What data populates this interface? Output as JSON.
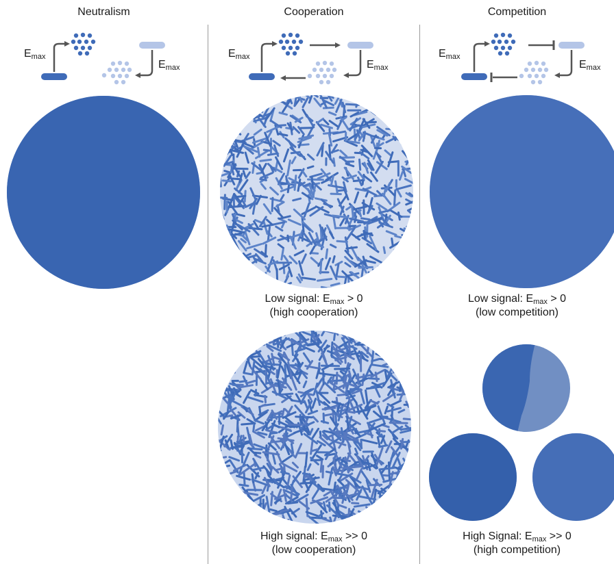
{
  "columns": {
    "neutralism": {
      "title": "Neutralism",
      "emax_left": {
        "base": "E",
        "sub": "max"
      },
      "emax_right": {
        "base": "E",
        "sub": "max"
      }
    },
    "cooperation": {
      "title": "Cooperation",
      "emax_left": {
        "base": "E",
        "sub": "max"
      },
      "emax_right": {
        "base": "E",
        "sub": "max"
      },
      "caption_low": {
        "pre": "Low signal: E",
        "sub": "max",
        "post": " > 0",
        "line2": "(high cooperation)"
      },
      "caption_high": {
        "pre": "High signal: E",
        "sub": "max",
        "post": " >> 0",
        "line2": "(low cooperation)"
      }
    },
    "competition": {
      "title": "Competition",
      "emax_left": {
        "base": "E",
        "sub": "max"
      },
      "emax_right": {
        "base": "E",
        "sub": "max"
      },
      "caption_low": {
        "pre": "Low signal: E",
        "sub": "max",
        "post": " > 0",
        "line2": "(low competition)"
      },
      "caption_high": {
        "pre": "High Signal: E",
        "sub": "max",
        "post": " >> 0",
        "line2": "(high competition)"
      }
    }
  },
  "colors": {
    "dark_strain": "#3f6bb8",
    "light_strain": "#b4c5e7",
    "background_light": "#d3ddf0",
    "arrow": "#555555",
    "divider": "#9a9a9a"
  }
}
